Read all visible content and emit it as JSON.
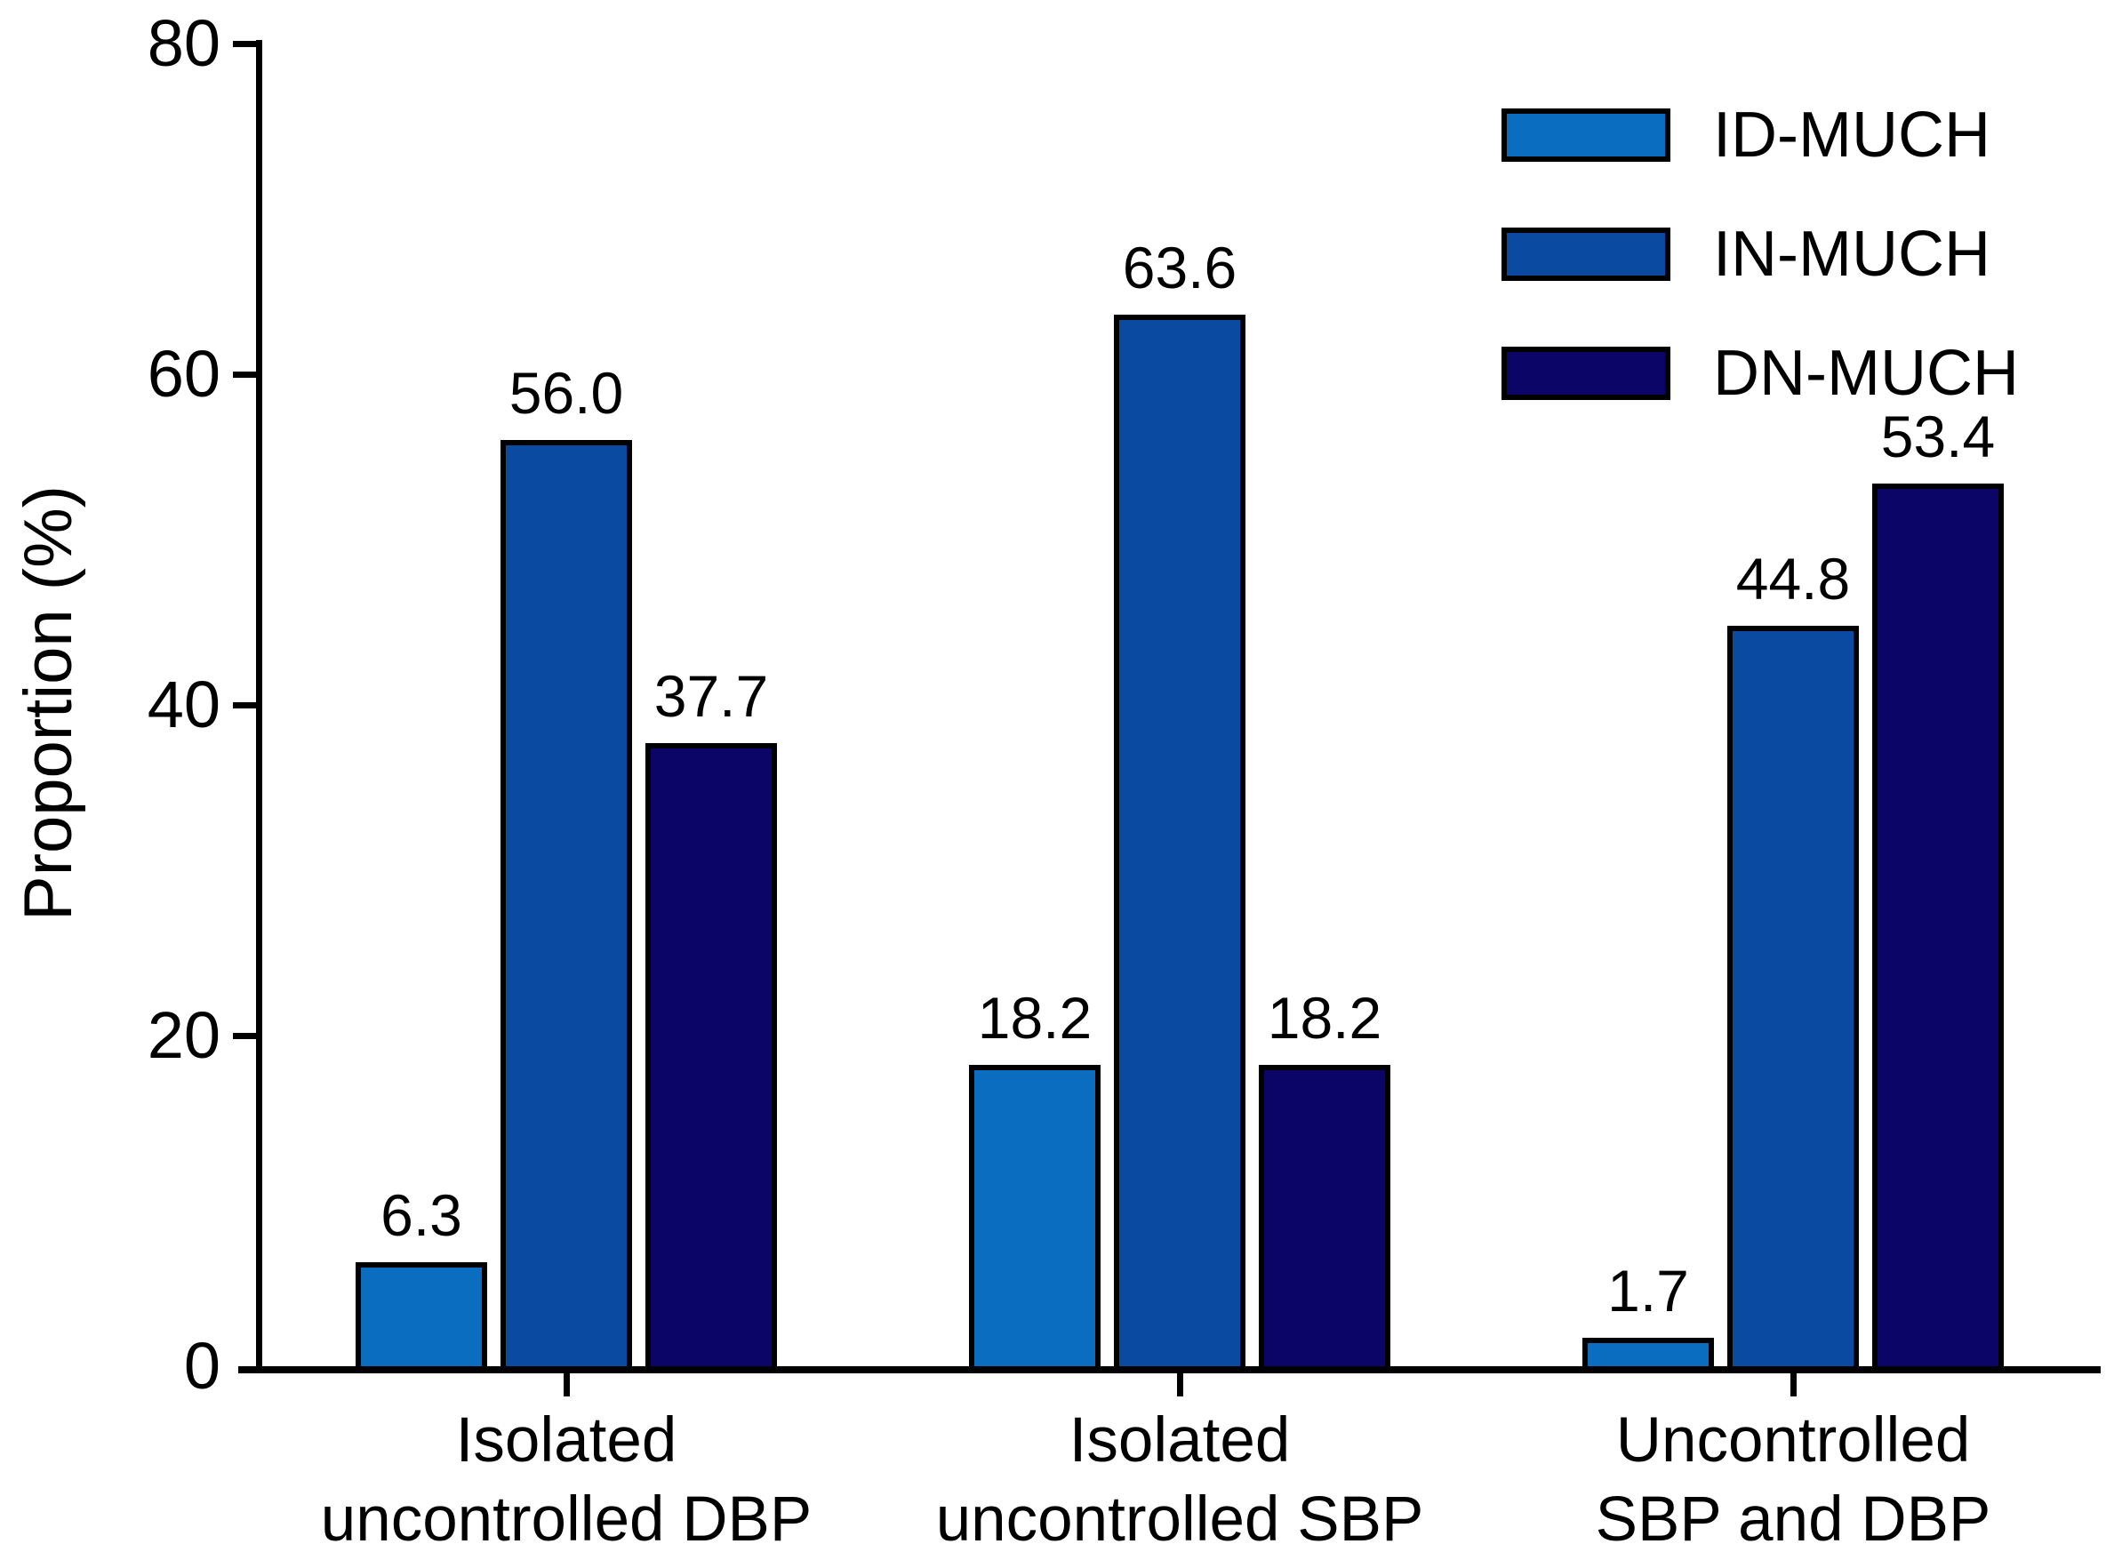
{
  "chart_data": {
    "type": "bar",
    "title": "",
    "xlabel": "",
    "ylabel": "Proportion (%)",
    "ylim": [
      0,
      80
    ],
    "yticks": [
      0,
      20,
      40,
      60,
      80
    ],
    "grid": false,
    "legend_position": "top-right",
    "categories": [
      "Isolated uncontrolled DBP",
      "Isolated uncontrolled SBP",
      "Uncontrolled SBP and DBP"
    ],
    "category_label_lines": [
      [
        "Isolated",
        "uncontrolled DBP"
      ],
      [
        "Isolated",
        "uncontrolled SBP"
      ],
      [
        "Uncontrolled",
        "SBP and DBP"
      ]
    ],
    "series": [
      {
        "name": "ID-MUCH",
        "color": "#0B6DBF",
        "values": [
          6.3,
          18.2,
          1.7
        ]
      },
      {
        "name": "IN-MUCH",
        "color": "#0A4AA0",
        "values": [
          56.0,
          63.6,
          44.8
        ]
      },
      {
        "name": "DN-MUCH",
        "color": "#0A0566",
        "values": [
          37.7,
          18.2,
          53.4
        ]
      }
    ],
    "value_label_decimals": 1
  },
  "colors": {
    "axis": "#000000",
    "text": "#000000",
    "background": "#FFFFFF",
    "bar_border": "#000000"
  }
}
